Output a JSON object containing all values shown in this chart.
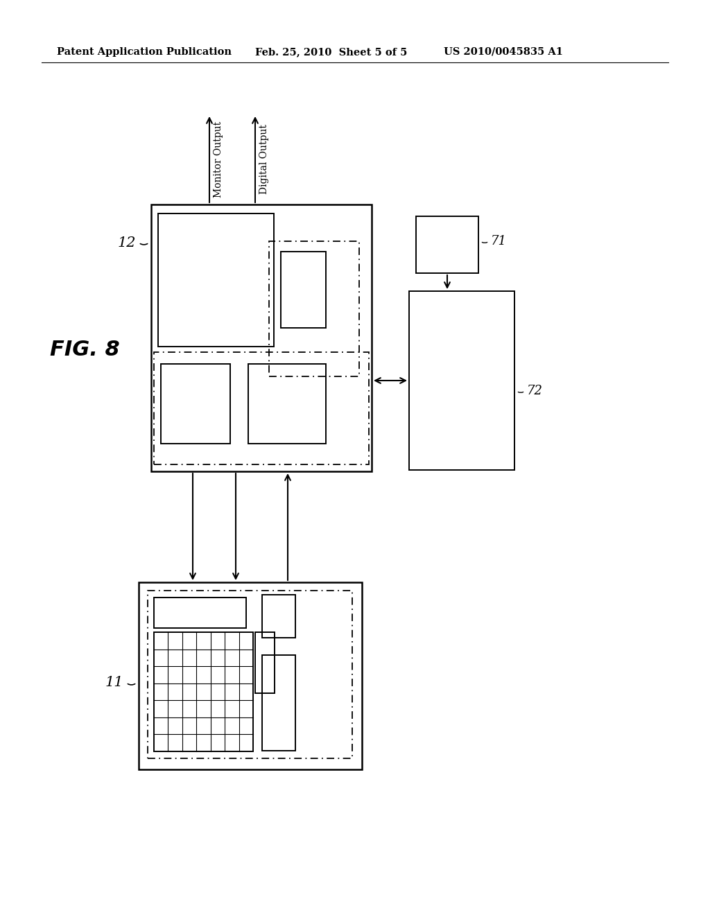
{
  "background_color": "#ffffff",
  "header_left": "Patent Application Publication",
  "header_mid": "Feb. 25, 2010  Sheet 5 of 5",
  "header_right": "US 2010/0045835 A1",
  "fig_label": "FIG. 8",
  "box12_label": "12",
  "box11_label": "11",
  "box71_label": "71",
  "box72_label": "72",
  "monitor_output": "Monitor Output",
  "digital_output": "Digital Output",
  "lc": "black",
  "lw_outer": 1.8,
  "lw_inner": 1.4,
  "lw_arrow": 1.5
}
